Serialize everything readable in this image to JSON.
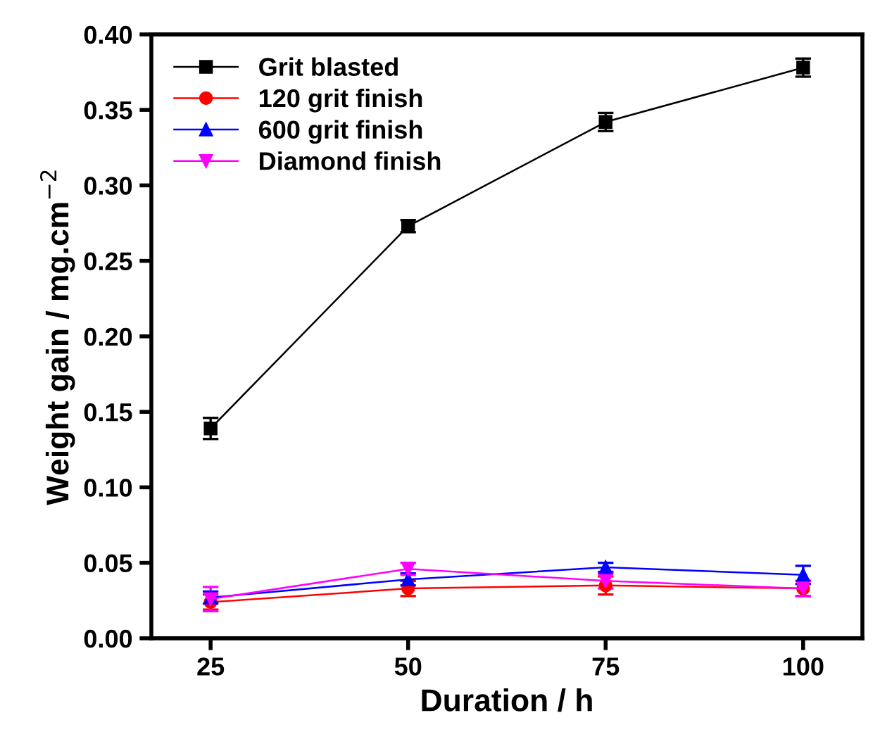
{
  "chart_data": {
    "type": "line",
    "xlabel": "Duration / h",
    "ylabel": "Weight gain / mg.cm$^{−2}$",
    "x": [
      25,
      50,
      75,
      100
    ],
    "xlim": [
      17.5,
      107.5
    ],
    "xticks": [
      25,
      50,
      75,
      100
    ],
    "ylim": [
      0,
      0.4
    ],
    "yticks": [
      {
        "value": 0,
        "label": "0.00"
      },
      {
        "value": 0.05,
        "label": "0.05"
      },
      {
        "value": 0.1,
        "label": "0.10"
      },
      {
        "value": 0.15,
        "label": "0.15"
      },
      {
        "value": 0.2,
        "label": "0.20"
      },
      {
        "value": 0.25,
        "label": "0.25"
      },
      {
        "value": 0.3,
        "label": "0.30"
      },
      {
        "value": 0.35,
        "label": "0.35"
      },
      {
        "value": 0.4,
        "label": "0.40"
      }
    ],
    "grid": false,
    "legend": "top left",
    "series": [
      {
        "name": "Grit blasted",
        "color": "#000000",
        "marker": "square",
        "values": [
          0.139,
          0.273,
          0.342,
          0.378
        ],
        "errors": [
          0.007,
          0.004,
          0.006,
          0.006
        ]
      },
      {
        "name": "120 grit finish",
        "color": "#ff0000",
        "marker": "circle",
        "values": [
          0.024,
          0.033,
          0.035,
          0.033
        ],
        "errors": [
          0.005,
          0.005,
          0.006,
          0.005
        ]
      },
      {
        "name": "600 grit finish",
        "color": "#0000ff",
        "marker": "triangle",
        "values": [
          0.027,
          0.039,
          0.047,
          0.042
        ],
        "errors": [
          0.004,
          0.004,
          0.003,
          0.006
        ]
      },
      {
        "name": "Diamond finish",
        "color": "#ff00ff",
        "marker": "triangle_down",
        "values": [
          0.026,
          0.046,
          0.038,
          0.033
        ],
        "errors": [
          0.008,
          0.004,
          0.005,
          0.005
        ]
      }
    ]
  }
}
